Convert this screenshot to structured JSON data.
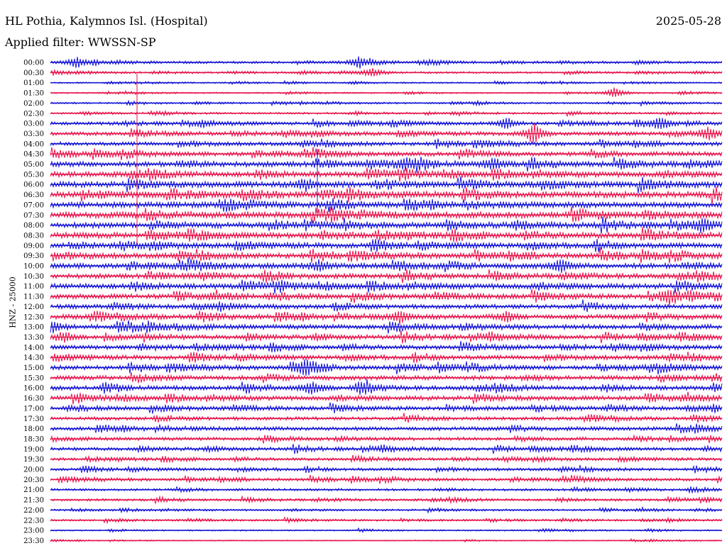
{
  "header": {
    "station": "HL Pothia, Kalymnos Isl. (Hospital)",
    "date": "2025-05-28",
    "filter": "Applied filter: WWSSN-SP",
    "channel_label": "HNZ - 25000"
  },
  "colors": {
    "blue": "#1414d8",
    "red": "#e8124a",
    "background": "#ffffff"
  },
  "chart_data": {
    "type": "line",
    "title": "HL Pothia, Kalymnos Isl. (Hospital)",
    "ylabel": "HNZ - 25000",
    "grid": false,
    "row_labels": [
      "00:00",
      "00:30",
      "01:00",
      "01:30",
      "02:00",
      "02:30",
      "03:00",
      "03:30",
      "04:00",
      "04:30",
      "05:00",
      "05:30",
      "06:00",
      "06:30",
      "07:00",
      "07:30",
      "08:00",
      "08:30",
      "09:00",
      "09:30",
      "10:00",
      "10:30",
      "11:00",
      "11:30",
      "12:00",
      "12:30",
      "13:00",
      "13:30",
      "14:00",
      "14:30",
      "15:00",
      "15:30",
      "16:00",
      "16:30",
      "17:00",
      "17:30",
      "18:00",
      "18:30",
      "19:00",
      "19:30",
      "20:00",
      "20:30",
      "21:00",
      "21:30",
      "22:00",
      "22:30",
      "23:00",
      "23:30"
    ],
    "row_amplitude": [
      0.25,
      0.2,
      0.15,
      0.15,
      0.18,
      0.2,
      0.35,
      0.4,
      0.4,
      0.45,
      0.55,
      0.55,
      0.6,
      0.65,
      0.6,
      0.65,
      0.6,
      0.6,
      0.55,
      0.55,
      0.55,
      0.5,
      0.55,
      0.5,
      0.45,
      0.5,
      0.5,
      0.45,
      0.45,
      0.45,
      0.45,
      0.45,
      0.45,
      0.45,
      0.4,
      0.35,
      0.4,
      0.35,
      0.35,
      0.3,
      0.3,
      0.3,
      0.25,
      0.25,
      0.2,
      0.2,
      0.15,
      0.12
    ],
    "series": [
      {
        "color": "blue",
        "rows": "even"
      },
      {
        "color": "red",
        "rows": "odd"
      }
    ],
    "events": [
      {
        "row": 0,
        "pos": 0.04,
        "amp": 0.9
      },
      {
        "row": 0,
        "pos": 0.46,
        "amp": 0.9
      },
      {
        "row": 1,
        "pos": 0.48,
        "amp": 0.6
      },
      {
        "row": 3,
        "pos": 0.84,
        "amp": 0.6
      },
      {
        "row": 6,
        "pos": 0.68,
        "amp": 0.9
      },
      {
        "row": 6,
        "pos": 0.91,
        "amp": 0.9
      },
      {
        "row": 7,
        "pos": 0.72,
        "amp": 1.5
      },
      {
        "row": 7,
        "pos": 0.98,
        "amp": 0.9
      },
      {
        "row": 10,
        "pos": 0.53,
        "amp": 0.8
      },
      {
        "row": 10,
        "pos": 0.66,
        "amp": 0.8
      },
      {
        "row": 12,
        "pos": 0.38,
        "amp": 0.8
      },
      {
        "row": 16,
        "pos": 0.97,
        "amp": 1.0
      },
      {
        "row": 20,
        "pos": 0.76,
        "amp": 0.9
      },
      {
        "row": 20,
        "pos": 0.4,
        "amp": 0.8
      },
      {
        "row": 23,
        "pos": 0.92,
        "amp": 0.9
      },
      {
        "row": 25,
        "pos": 0.52,
        "amp": 0.9
      },
      {
        "row": 25,
        "pos": 0.68,
        "amp": 0.7
      },
      {
        "row": 26,
        "pos": 0.0,
        "amp": 0.9
      },
      {
        "row": 27,
        "pos": 0.02,
        "amp": 0.8
      },
      {
        "row": 30,
        "pos": 0.38,
        "amp": 1.1
      },
      {
        "row": 32,
        "pos": 0.39,
        "amp": 1.0
      },
      {
        "row": 32,
        "pos": 0.47,
        "amp": 0.8
      }
    ]
  }
}
